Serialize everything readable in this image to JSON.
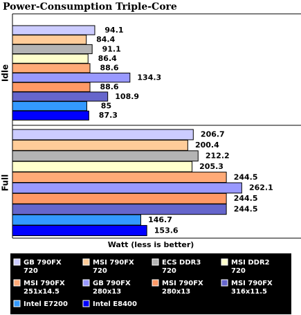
{
  "chart_data": {
    "type": "bar",
    "orientation": "horizontal",
    "title": "Power-Consumption Triple-Core",
    "xlabel": "Watt (less is better)",
    "categories": [
      "Idle",
      "Full"
    ],
    "xlim": [
      0,
      280
    ],
    "series": [
      {
        "name": "GB 790FX\n720",
        "color": "#ccccff",
        "values": [
          94.1,
          206.7
        ]
      },
      {
        "name": "MSI 790FX\n720",
        "color": "#ffcc99",
        "values": [
          84.4,
          200.4
        ]
      },
      {
        "name": "ECS DDR3\n720",
        "color": "#b4b4b4",
        "values": [
          91.1,
          212.2
        ]
      },
      {
        "name": "MSI DDR2\n720",
        "color": "#ffffcc",
        "values": [
          86.4,
          205.3
        ]
      },
      {
        "name": "MSI 790FX\n251x14.5",
        "color": "#ffaa77",
        "values": [
          88.6,
          244.5
        ]
      },
      {
        "name": "GB 790FX\n280x13",
        "color": "#9999ff",
        "values": [
          134.3,
          262.1
        ]
      },
      {
        "name": "MSI 790FX\n280x13",
        "color": "#ff9966",
        "values": [
          88.6,
          244.5
        ]
      },
      {
        "name": "MSI 790FX\n316x11.5",
        "color": "#6666cc",
        "values": [
          108.9,
          244.5
        ]
      },
      {
        "name": "Intel E7200",
        "color": "#3399ff",
        "values": [
          85,
          146.7
        ]
      },
      {
        "name": "Intel E8400",
        "color": "#0000ff",
        "values": [
          87.3,
          153.6
        ]
      }
    ]
  }
}
